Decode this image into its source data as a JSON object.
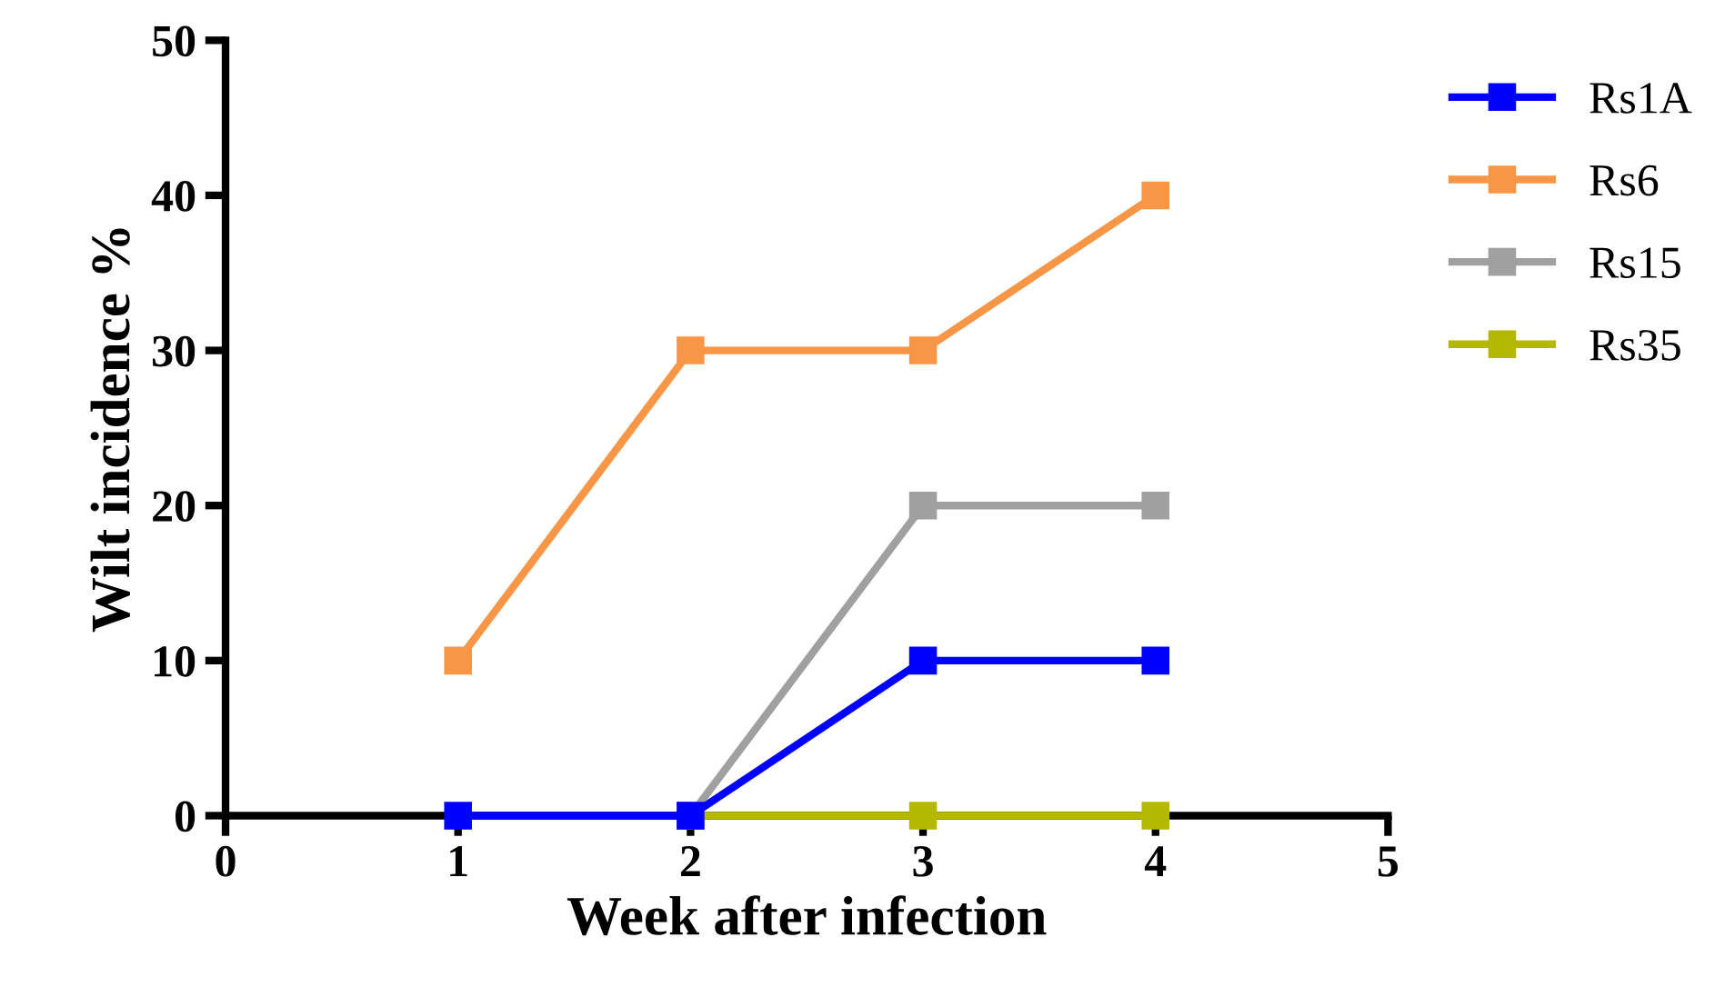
{
  "chart_data": {
    "type": "line",
    "xlabel": "Week after infection",
    "ylabel": "Wilt incidence %",
    "x": [
      1,
      2,
      3,
      4
    ],
    "series": [
      {
        "name": "Rs1A",
        "color": "#0000ff",
        "values": [
          0,
          0,
          10,
          10
        ]
      },
      {
        "name": "Rs6",
        "color": "#f79646",
        "values": [
          10,
          30,
          30,
          40
        ]
      },
      {
        "name": "Rs15",
        "color": "#a0a0a0",
        "values": [
          null,
          0,
          20,
          20
        ]
      },
      {
        "name": "Rs35",
        "color": "#b5b800",
        "values": [
          null,
          0,
          0,
          0
        ]
      }
    ],
    "xlim": [
      0,
      5
    ],
    "xticks": [
      0,
      1,
      2,
      3,
      4,
      5
    ],
    "ylim": [
      0,
      50
    ],
    "yticks": [
      0,
      10,
      20,
      30,
      40,
      50
    ],
    "grid": false,
    "legend": "top right",
    "marker": "square",
    "line_style": "solid"
  }
}
